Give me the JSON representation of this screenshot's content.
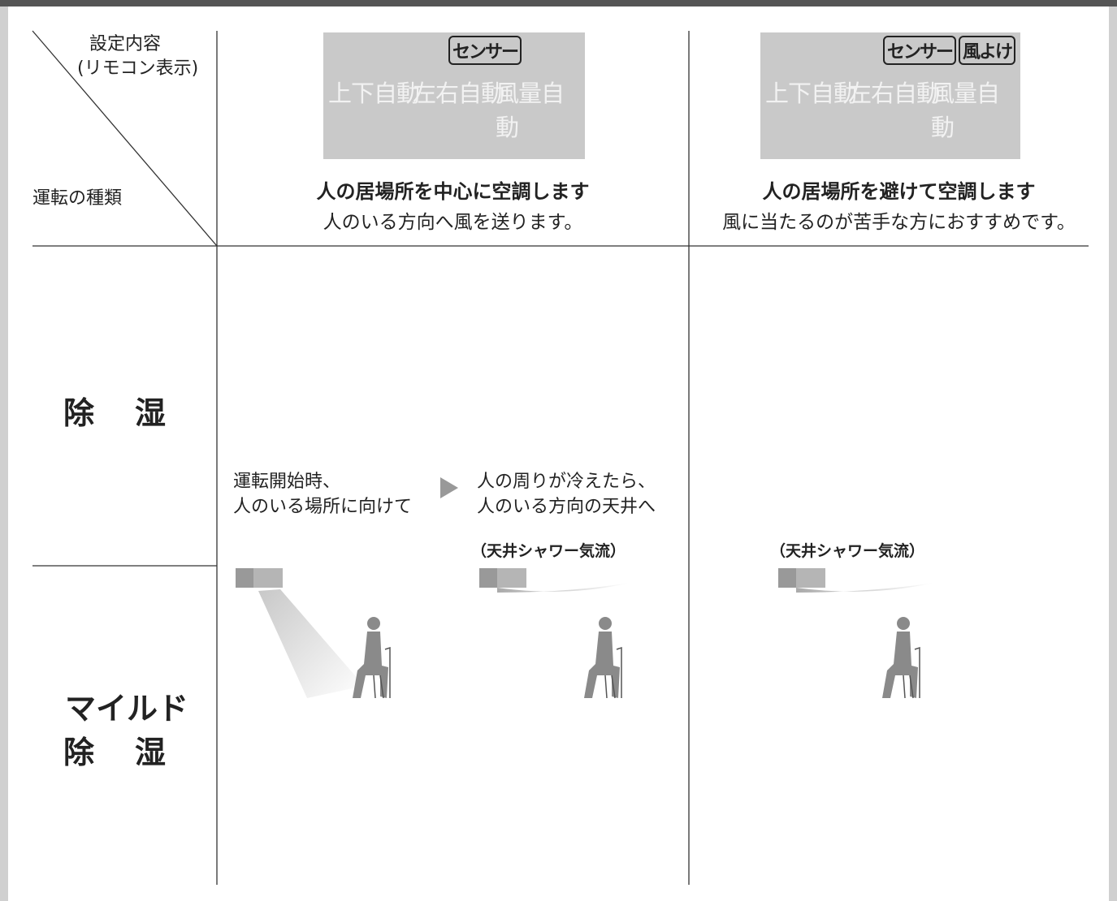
{
  "corner": {
    "top_line1": "設定内容",
    "top_line2": "(リモコン表示)",
    "bottom": "運転の種類"
  },
  "columns": [
    {
      "badges": [
        "センサー"
      ],
      "display_labels": [
        "上下自動",
        "左右自動",
        "風量自動"
      ],
      "title": "人の居場所を中心に空調します",
      "subtitle": "人のいる方向へ風を送ります。"
    },
    {
      "badges": [
        "センサー",
        "風よけ"
      ],
      "display_labels": [
        "上下自動",
        "左右自動",
        "風量自動"
      ],
      "title": "人の居場所を避けて空調します",
      "subtitle": "風に当たるのが苦手な方におすすめです。"
    }
  ],
  "rows": [
    {
      "label": "除湿"
    },
    {
      "label_line1": "マイルド",
      "label_line2": "除湿"
    }
  ],
  "content": {
    "column1": {
      "step1": [
        "運転開始時、",
        "人のいる場所に向けて"
      ],
      "step2": [
        "人の周りが冷えたら、",
        "人のいる方向の天井へ"
      ],
      "note": "（天井シャワー気流）"
    },
    "column2": {
      "note": "（天井シャワー気流）"
    }
  }
}
